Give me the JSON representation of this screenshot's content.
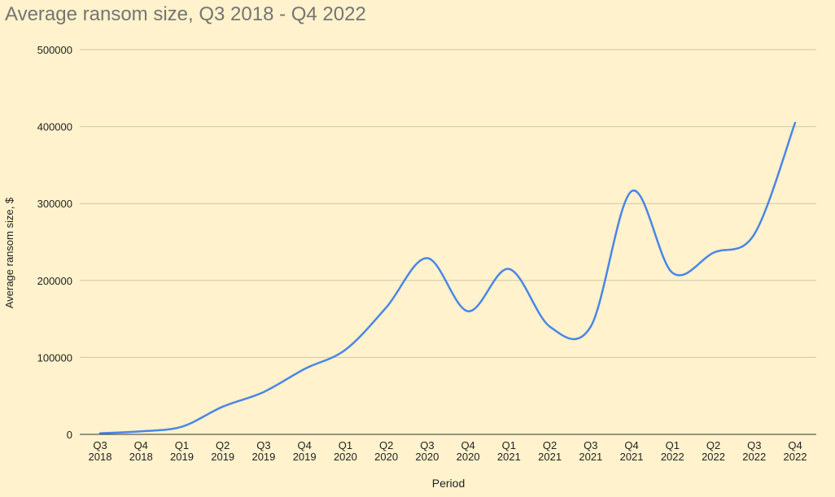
{
  "chart_data": {
    "type": "line",
    "title": "Average ransom size, Q3 2018 - Q4 2022",
    "xlabel": "Period",
    "ylabel": "Average ransom size, $",
    "ylim": [
      0,
      500000
    ],
    "yticks": [
      "0",
      "100000",
      "200000",
      "300000",
      "400000",
      "500000"
    ],
    "grid": true,
    "categories": [
      [
        "Q3",
        "2018"
      ],
      [
        "Q4",
        "2018"
      ],
      [
        "Q1",
        "2019"
      ],
      [
        "Q2",
        "2019"
      ],
      [
        "Q3",
        "2019"
      ],
      [
        "Q4",
        "2019"
      ],
      [
        "Q1",
        "2020"
      ],
      [
        "Q2",
        "2020"
      ],
      [
        "Q3",
        "2020"
      ],
      [
        "Q4",
        "2020"
      ],
      [
        "Q1",
        "2021"
      ],
      [
        "Q2",
        "2021"
      ],
      [
        "Q3",
        "2021"
      ],
      [
        "Q4",
        "2021"
      ],
      [
        "Q1",
        "2022"
      ],
      [
        "Q2",
        "2022"
      ],
      [
        "Q3",
        "2022"
      ],
      [
        "Q4",
        "2022"
      ]
    ],
    "series": [
      {
        "values": [
          1500,
          4000,
          10000,
          36000,
          55000,
          85000,
          110000,
          165000,
          229000,
          160000,
          215000,
          140000,
          140000,
          316000,
          210000,
          236000,
          260000,
          405000
        ],
        "color": "#4a86e8"
      }
    ]
  }
}
